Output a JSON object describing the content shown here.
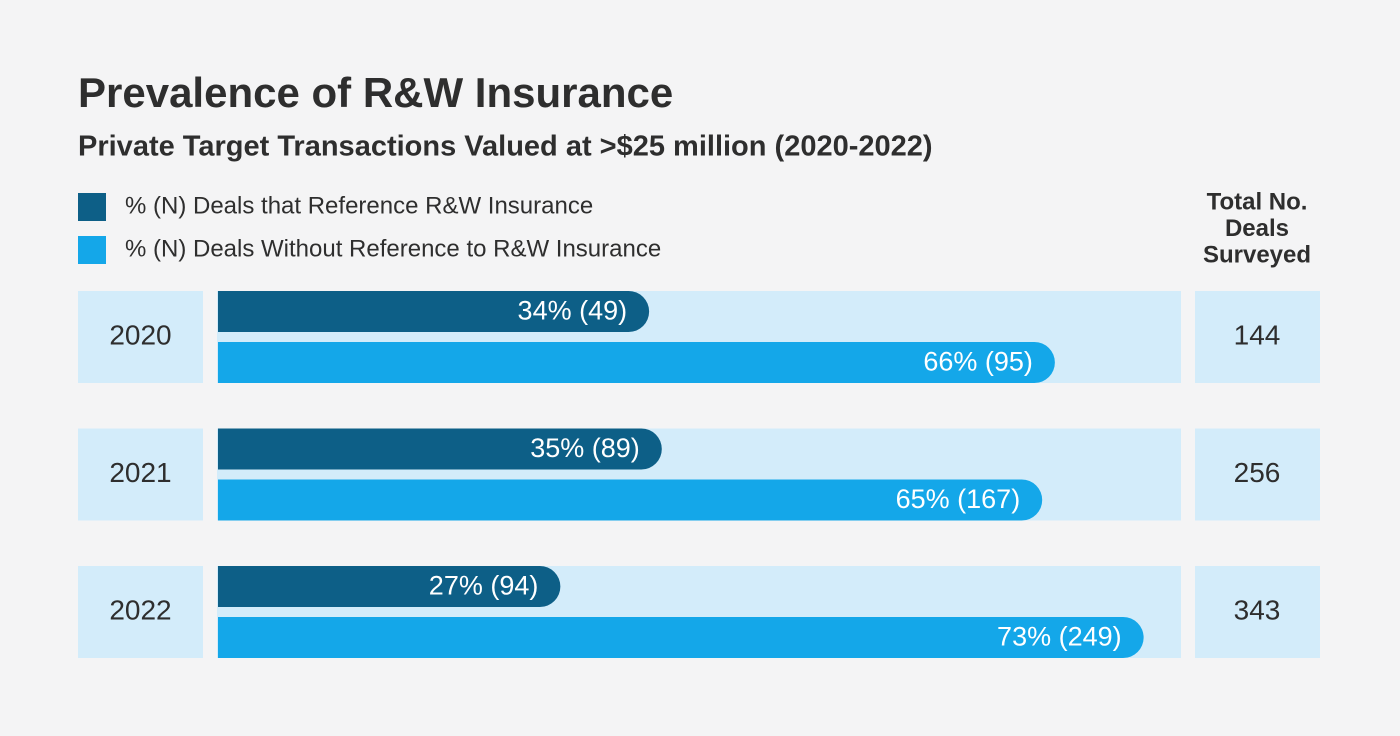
{
  "chart_data": {
    "type": "bar",
    "orientation": "horizontal",
    "title": "Prevalence of R&W Insurance",
    "subtitle": "Private Target Transactions Valued at >$25 million (2020-2022)",
    "categories": [
      "2020",
      "2021",
      "2022"
    ],
    "series": [
      {
        "name": "% (N) Deals that Reference R&W Insurance",
        "color": "#0d5f87",
        "values": [
          34,
          35,
          27
        ],
        "value_labels": [
          "34% (49)",
          "35% (89)",
          "27% (94)"
        ]
      },
      {
        "name": "% (N) Deals Without Reference to R&W Insurance",
        "color": "#14a7e9",
        "values": [
          66,
          65,
          73
        ],
        "value_labels": [
          "66% (95)",
          "65% (167)",
          "73% (249)"
        ]
      }
    ],
    "totals_header": [
      "Total No.",
      "Deals",
      "Surveyed"
    ],
    "totals": [
      144,
      256,
      343
    ]
  }
}
